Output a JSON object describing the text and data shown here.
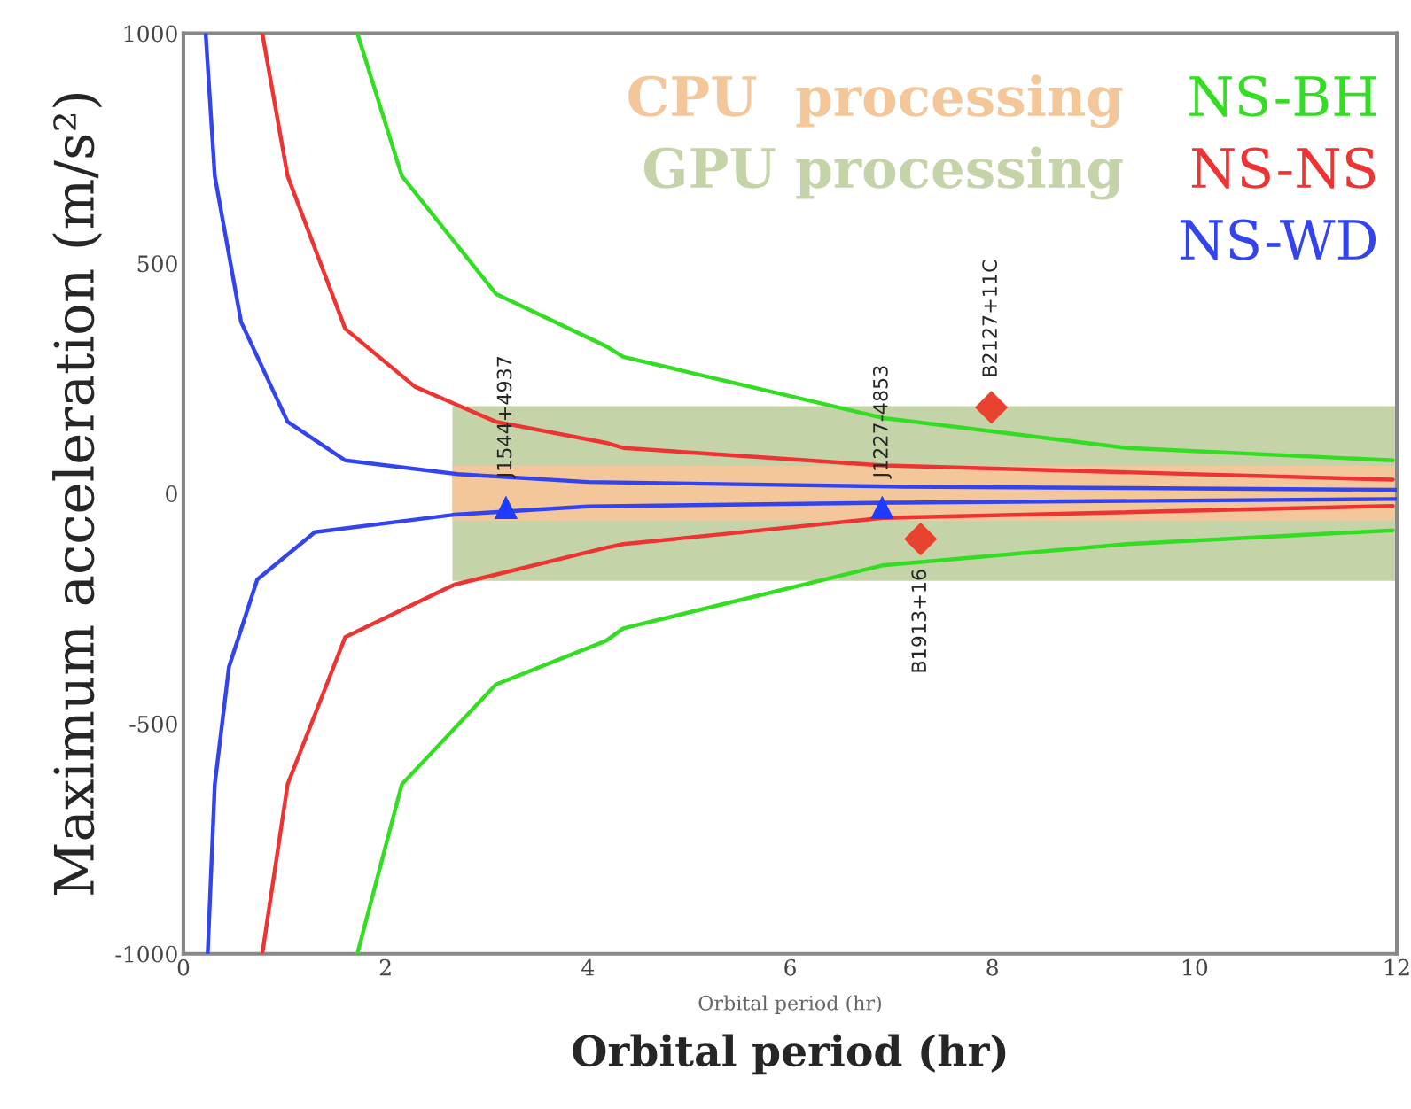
{
  "chart_data": {
    "type": "line",
    "xlabel": "Orbital period (hr)",
    "ylabel": "Maximum acceleration (m/s²)",
    "xlim": [
      0,
      12
    ],
    "xticks": [
      0,
      2,
      4,
      6,
      8,
      10,
      12
    ],
    "ylim": [
      -1000,
      1000
    ],
    "yticks": [
      -1000,
      -500,
      0,
      500,
      1000
    ],
    "grid": false,
    "legend": false,
    "series": [
      {
        "name": "NS-BH",
        "color": "#33dd22",
        "x": [
          1.72,
          2.16,
          3.09,
          4.18,
          4.35,
          6.92,
          9.33,
          11.96
        ],
        "values": [
          1000,
          690,
          434,
          320,
          297,
          164,
          99,
          72
        ]
      },
      {
        "name": "NS-NS",
        "color": "#ee3333",
        "x": [
          0.78,
          1.03,
          1.6,
          2.29,
          3.09,
          4.18,
          4.35,
          6.92,
          11.96
        ],
        "values": [
          1000,
          690,
          358,
          232,
          156,
          110,
          99,
          61,
          30
        ]
      },
      {
        "name": "NS-WD",
        "color": "#3344ee",
        "x": [
          0.22,
          0.31,
          0.57,
          1.03,
          1.6,
          2.71,
          4.0,
          7.0,
          12.0
        ],
        "values": [
          1000,
          690,
          373,
          156,
          72,
          42,
          25,
          15,
          8
        ]
      },
      {
        "color": "#33dd22",
        "x": [
          1.72,
          2.16,
          3.09,
          4.18,
          4.35,
          6.92,
          9.33,
          11.96
        ],
        "values": [
          -1000,
          -632,
          -415,
          -320,
          -293,
          -156,
          -110,
          -80
        ]
      },
      {
        "color": "#ee3333",
        "x": [
          0.78,
          1.03,
          1.6,
          2.68,
          4.18,
          4.35,
          6.92,
          11.96
        ],
        "values": [
          -1000,
          -632,
          -312,
          -198,
          -118,
          -110,
          -53,
          -27
        ]
      },
      {
        "color": "#3344ee",
        "x": [
          0.24,
          0.31,
          0.45,
          0.73,
          1.3,
          2.68,
          4.0,
          7.0,
          12.0
        ],
        "values": [
          -1000,
          -632,
          -377,
          -187,
          -84,
          -46,
          -28,
          -20,
          -12
        ]
      },
      {
        "type": "scatter",
        "marker": "triangle",
        "color": "#1f3bff",
        "x": [
          3.19,
          6.91
        ],
        "values": [
          -30,
          -30
        ]
      },
      {
        "type": "scatter",
        "marker": "diamond",
        "color": "#e8432e",
        "x": [
          7.99,
          7.29
        ],
        "values": [
          187,
          -99
        ]
      }
    ],
    "bands": [
      {
        "axis": "y",
        "from": -190,
        "to": 190,
        "label": "GPU processing",
        "color": "#c5d3a8"
      },
      {
        "axis": "y",
        "from": -60,
        "to": 60,
        "label": "CPU  processing",
        "color": "#f3c79a"
      }
    ],
    "annotations": [
      {
        "text": "J1544+4937",
        "x": 3.19,
        "y": -30
      },
      {
        "text": "J1227-4853",
        "x": 6.91,
        "y": -30
      },
      {
        "text": "B2127+11C",
        "x": 7.99,
        "y": 187
      },
      {
        "text": "B1913+16",
        "x": 7.29,
        "y": -99
      },
      "Orbital period (hr)"
    ]
  }
}
